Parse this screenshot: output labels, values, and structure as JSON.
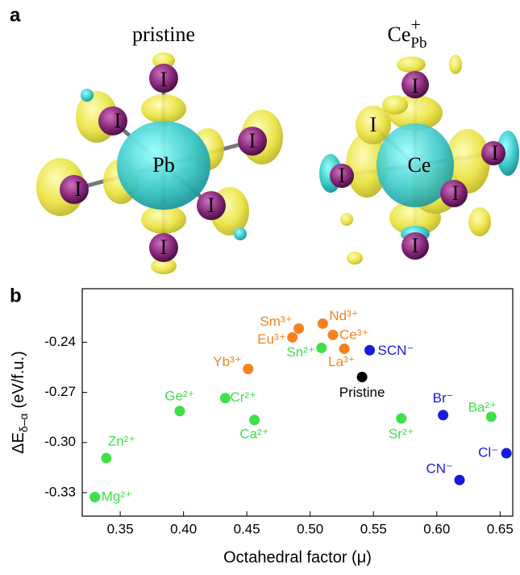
{
  "panel_labels": [
    "a",
    "b"
  ],
  "panel_a": {
    "left_title": "pristine",
    "right_title": {
      "base": "Ce",
      "sub": "Pb",
      "sup": "+"
    },
    "left_atoms": [
      "I",
      "I",
      "I",
      "Pb",
      "I",
      "I",
      "I"
    ],
    "right_atoms": [
      "I",
      "I",
      "I",
      "Ce",
      "I",
      "I",
      "I"
    ]
  },
  "chart_data": {
    "type": "scatter",
    "x_label": "Octahedral factor (μ)",
    "y_label": {
      "main": "ΔE",
      "sub": "δ–α",
      "unit": "(eV/f.u.)"
    },
    "xlim": [
      0.32,
      0.66
    ],
    "ylim": [
      -0.344,
      -0.208
    ],
    "xticks": [
      0.35,
      {
        "value": 0.4,
        "label": "0.40"
      },
      0.45,
      {
        "value": 0.5,
        "label": "0.50"
      },
      0.55,
      {
        "value": 0.6,
        "label": "0.60"
      },
      0.65
    ],
    "yticks": [
      -0.24,
      -0.27,
      {
        "value": -0.3,
        "label": "-0.30"
      },
      -0.33
    ],
    "series": [
      {
        "color": "#f5821f",
        "labels": [
          "Sm³⁺",
          "Nd³⁺",
          "Eu³⁺",
          "Ce³⁺",
          "La³⁺",
          "Yb³⁺"
        ],
        "x": [
          0.491,
          0.51,
          0.486,
          0.518,
          0.527,
          0.451
        ],
        "values": [
          -0.2318,
          -0.2289,
          -0.2371,
          -0.2356,
          -0.2439,
          -0.256
        ]
      },
      {
        "color": "#3ee04a",
        "labels": [
          "Sn²⁺",
          "Ge²⁺",
          "Cr²⁺",
          "Ca²⁺",
          "Zn²⁺",
          "Mg²⁺",
          "Sr²⁺",
          "Ba²⁺"
        ],
        "x": [
          0.509,
          0.397,
          0.433,
          0.456,
          0.339,
          0.33,
          0.572,
          0.643
        ],
        "values": [
          -0.2434,
          -0.2812,
          -0.2734,
          -0.2865,
          -0.3093,
          -0.3326,
          -0.2856,
          -0.2846
        ]
      },
      {
        "color": "#1a1adc",
        "labels": [
          "SCN⁻",
          "Br⁻",
          "CN⁻",
          "Cl⁻"
        ],
        "x": [
          0.547,
          0.605,
          0.618,
          0.655
        ],
        "values": [
          -0.2448,
          -0.2836,
          -0.3224,
          -0.3064
        ]
      },
      {
        "color": "#000000",
        "labels": [
          "Pristine"
        ],
        "x": [
          0.541
        ],
        "values": [
          -0.2608
        ]
      }
    ]
  }
}
